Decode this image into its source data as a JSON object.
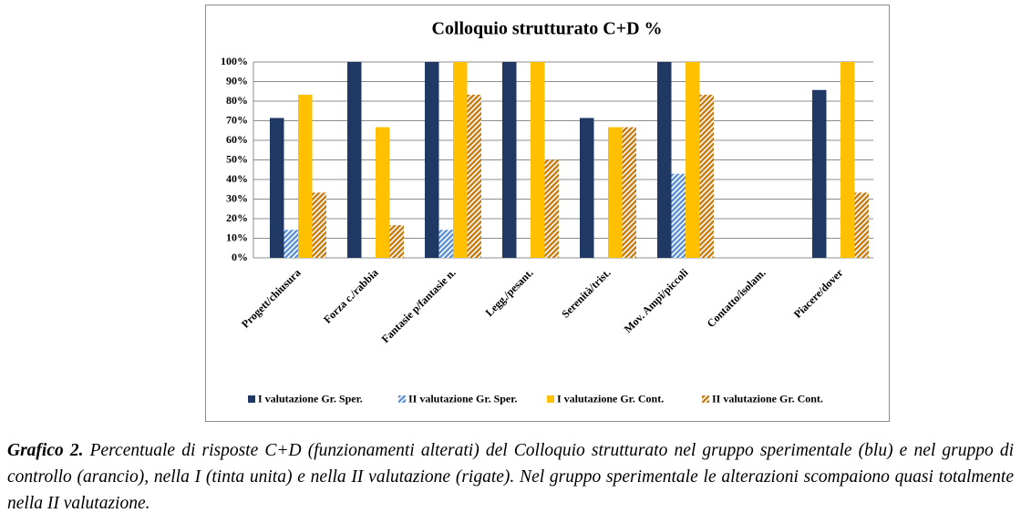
{
  "chart_data": {
    "type": "bar",
    "title": "Colloquio strutturato C+D %",
    "categories": [
      "Progett/chiusura",
      "Forza c./rabbia",
      "Fantasie p/fantasie n.",
      "Legg./pesant.",
      "Serenità/trist.",
      "Mov. Ampi/piccoli",
      "Contatto/isolam.",
      "Piacere/dover"
    ],
    "series": [
      {
        "name": "I valutazione Gr. Sper.",
        "color": "#1f3864",
        "pattern": "solid",
        "values": [
          71.4,
          100,
          100,
          100,
          71.4,
          100,
          0,
          85.7
        ]
      },
      {
        "name": "II valutazione Gr. Sper.",
        "color": "#5b8fd6",
        "pattern": "hatch",
        "values": [
          14.3,
          0,
          14.3,
          0,
          0,
          42.9,
          0,
          0
        ]
      },
      {
        "name": "I valutazione Gr. Cont.",
        "color": "#ffc000",
        "pattern": "solid",
        "values": [
          83.3,
          66.7,
          100,
          100,
          66.7,
          100,
          0,
          100
        ]
      },
      {
        "name": "II valutazione Gr. Cont.",
        "color": "#c77a10",
        "pattern": "hatch",
        "values": [
          33.3,
          16.7,
          83.3,
          50,
          66.7,
          83.3,
          0,
          33.3
        ]
      }
    ],
    "ylim": [
      0,
      100
    ],
    "yticks": [
      {
        "value": 0,
        "label": "0%"
      },
      {
        "value": 10,
        "label": "10%"
      },
      {
        "value": 20,
        "label": "20%"
      },
      {
        "value": 30,
        "label": "30%"
      },
      {
        "value": 40,
        "label": "40%"
      },
      {
        "value": 50,
        "label": "50%"
      },
      {
        "value": 60,
        "label": "60%"
      },
      {
        "value": 70,
        "label": "70%"
      },
      {
        "value": 80,
        "label": "80%"
      },
      {
        "value": 90,
        "label": "90%"
      },
      {
        "value": 100,
        "label": "100%"
      }
    ],
    "grid": true,
    "legend": "bottom"
  },
  "caption": {
    "label": "Grafico 2.",
    "text": "Percentuale di risposte C+D (funzionamenti alterati) del Colloquio strutturato nel gruppo sperimentale (blu) e nel gruppo di controllo (arancio), nella I (tinta unita) e nella II valutazione (rigate). Nel gruppo sperimentale le alterazioni scompaiono quasi totalmente nella II valutazione."
  }
}
